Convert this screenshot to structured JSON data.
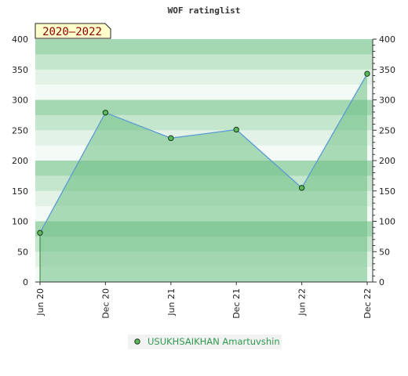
{
  "chart_data": {
    "type": "area",
    "title": "WOF ratinglist",
    "badge": "2020–2022",
    "x": [
      "Jun 20",
      "Dec 20",
      "Jun 21",
      "Dec 21",
      "Jun 22",
      "Dec 22"
    ],
    "series": [
      {
        "name": "USUKHSAIKHAN Amartuvshin",
        "values": [
          81,
          279,
          237,
          251,
          155,
          343
        ]
      }
    ],
    "ylim": [
      0,
      400
    ],
    "yticks": [
      0,
      50,
      100,
      150,
      200,
      250,
      300,
      350,
      400
    ],
    "grid": true,
    "legend": "bottom-center",
    "colors": {
      "line": "#5b9bd5",
      "fill": "#6cbf84",
      "marker": "#5cb85c",
      "badge_bg": "#ffffcc",
      "legend_text": "#2e9a4e"
    }
  }
}
